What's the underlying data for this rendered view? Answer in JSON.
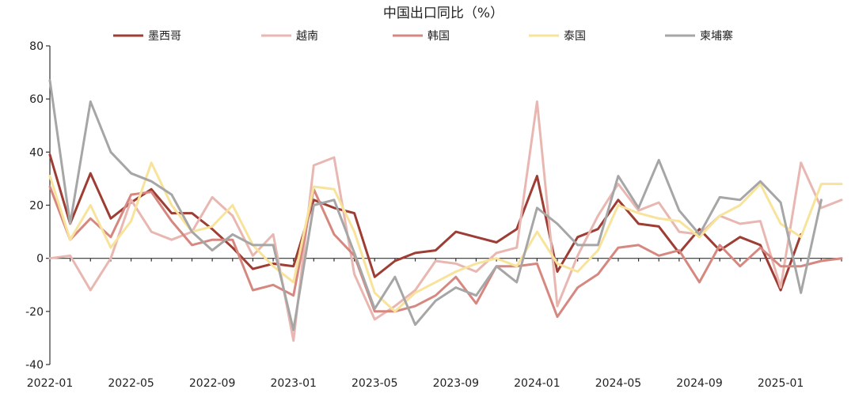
{
  "chart_data": {
    "type": "line",
    "title": "中国出口同比（%）",
    "ylim": [
      -40,
      80
    ],
    "yticks": [
      -40,
      -20,
      0,
      20,
      40,
      60,
      80
    ],
    "x": [
      "2022-01",
      "2022-02",
      "2022-03",
      "2022-04",
      "2022-05",
      "2022-06",
      "2022-07",
      "2022-08",
      "2022-09",
      "2022-10",
      "2022-11",
      "2022-12",
      "2023-01",
      "2023-02",
      "2023-03",
      "2023-04",
      "2023-05",
      "2023-06",
      "2023-07",
      "2023-08",
      "2023-09",
      "2023-10",
      "2023-11",
      "2023-12",
      "2024-01",
      "2024-02",
      "2024-03",
      "2024-04",
      "2024-05",
      "2024-06",
      "2024-07",
      "2024-08",
      "2024-09",
      "2024-10",
      "2024-11",
      "2024-12",
      "2025-01",
      "2025-02",
      "2025-03",
      "2025-04"
    ],
    "xtick_labels": [
      "2022-01",
      "2022-05",
      "2022-09",
      "2023-01",
      "2023-05",
      "2023-09",
      "2024-01",
      "2024-05",
      "2024-09",
      "2025-01"
    ],
    "xtick_index": [
      0,
      4,
      8,
      12,
      16,
      20,
      24,
      28,
      32,
      36
    ],
    "legend_position": "top",
    "series": [
      {
        "name": "墨西哥",
        "color": "#9E3D33",
        "values": [
          39,
          13,
          32,
          15,
          21,
          26,
          17,
          17,
          11,
          4,
          -4,
          -2,
          -3,
          22,
          19,
          17,
          -7,
          -1,
          2,
          3,
          10,
          8,
          6,
          11,
          31,
          -5,
          8,
          11,
          22,
          13,
          12,
          2,
          11,
          3,
          8,
          5,
          -12,
          9,
          null,
          null
        ]
      },
      {
        "name": "越南",
        "color": "#E9B7B1",
        "values": [
          0,
          1,
          -12,
          0,
          22,
          10,
          7,
          10,
          23,
          16,
          1,
          9,
          -31,
          35,
          38,
          -6,
          -23,
          -18,
          -12,
          -1,
          -2,
          -5,
          2,
          4,
          59,
          -18,
          1,
          16,
          28,
          18,
          21,
          10,
          9,
          16,
          13,
          14,
          -11,
          36,
          19,
          22
        ]
      },
      {
        "name": "韩国",
        "color": "#D68880",
        "values": [
          27,
          7,
          15,
          8,
          24,
          25,
          14,
          5,
          7,
          7,
          -12,
          -10,
          -14,
          26,
          9,
          1,
          -20,
          -20,
          -18,
          -14,
          -7,
          -17,
          -3,
          -3,
          -2,
          -22,
          -11,
          -6,
          4,
          5,
          1,
          3,
          -9,
          5,
          -3,
          4,
          -3,
          -3,
          -1,
          0
        ]
      },
      {
        "name": "泰国",
        "color": "#F8E39B",
        "values": [
          31,
          7,
          20,
          4,
          14,
          36,
          20,
          10,
          12,
          20,
          5,
          -3,
          -9,
          27,
          26,
          10,
          -13,
          -20,
          -13,
          -9,
          -5,
          -2,
          0,
          -3,
          10,
          -2,
          -5,
          3,
          20,
          17,
          15,
          14,
          8,
          16,
          20,
          28,
          13,
          8,
          28,
          28
        ]
      },
      {
        "name": "柬埔寨",
        "color": "#A6A6A6",
        "values": [
          67,
          13,
          59,
          40,
          32,
          29,
          24,
          10,
          3,
          9,
          5,
          5,
          -27,
          20,
          22,
          2,
          -19,
          -7,
          -25,
          -16,
          -11,
          -14,
          -3,
          -9,
          19,
          13,
          5,
          5,
          31,
          19,
          37,
          18,
          9,
          23,
          22,
          29,
          21,
          -13,
          22,
          null
        ]
      }
    ]
  }
}
